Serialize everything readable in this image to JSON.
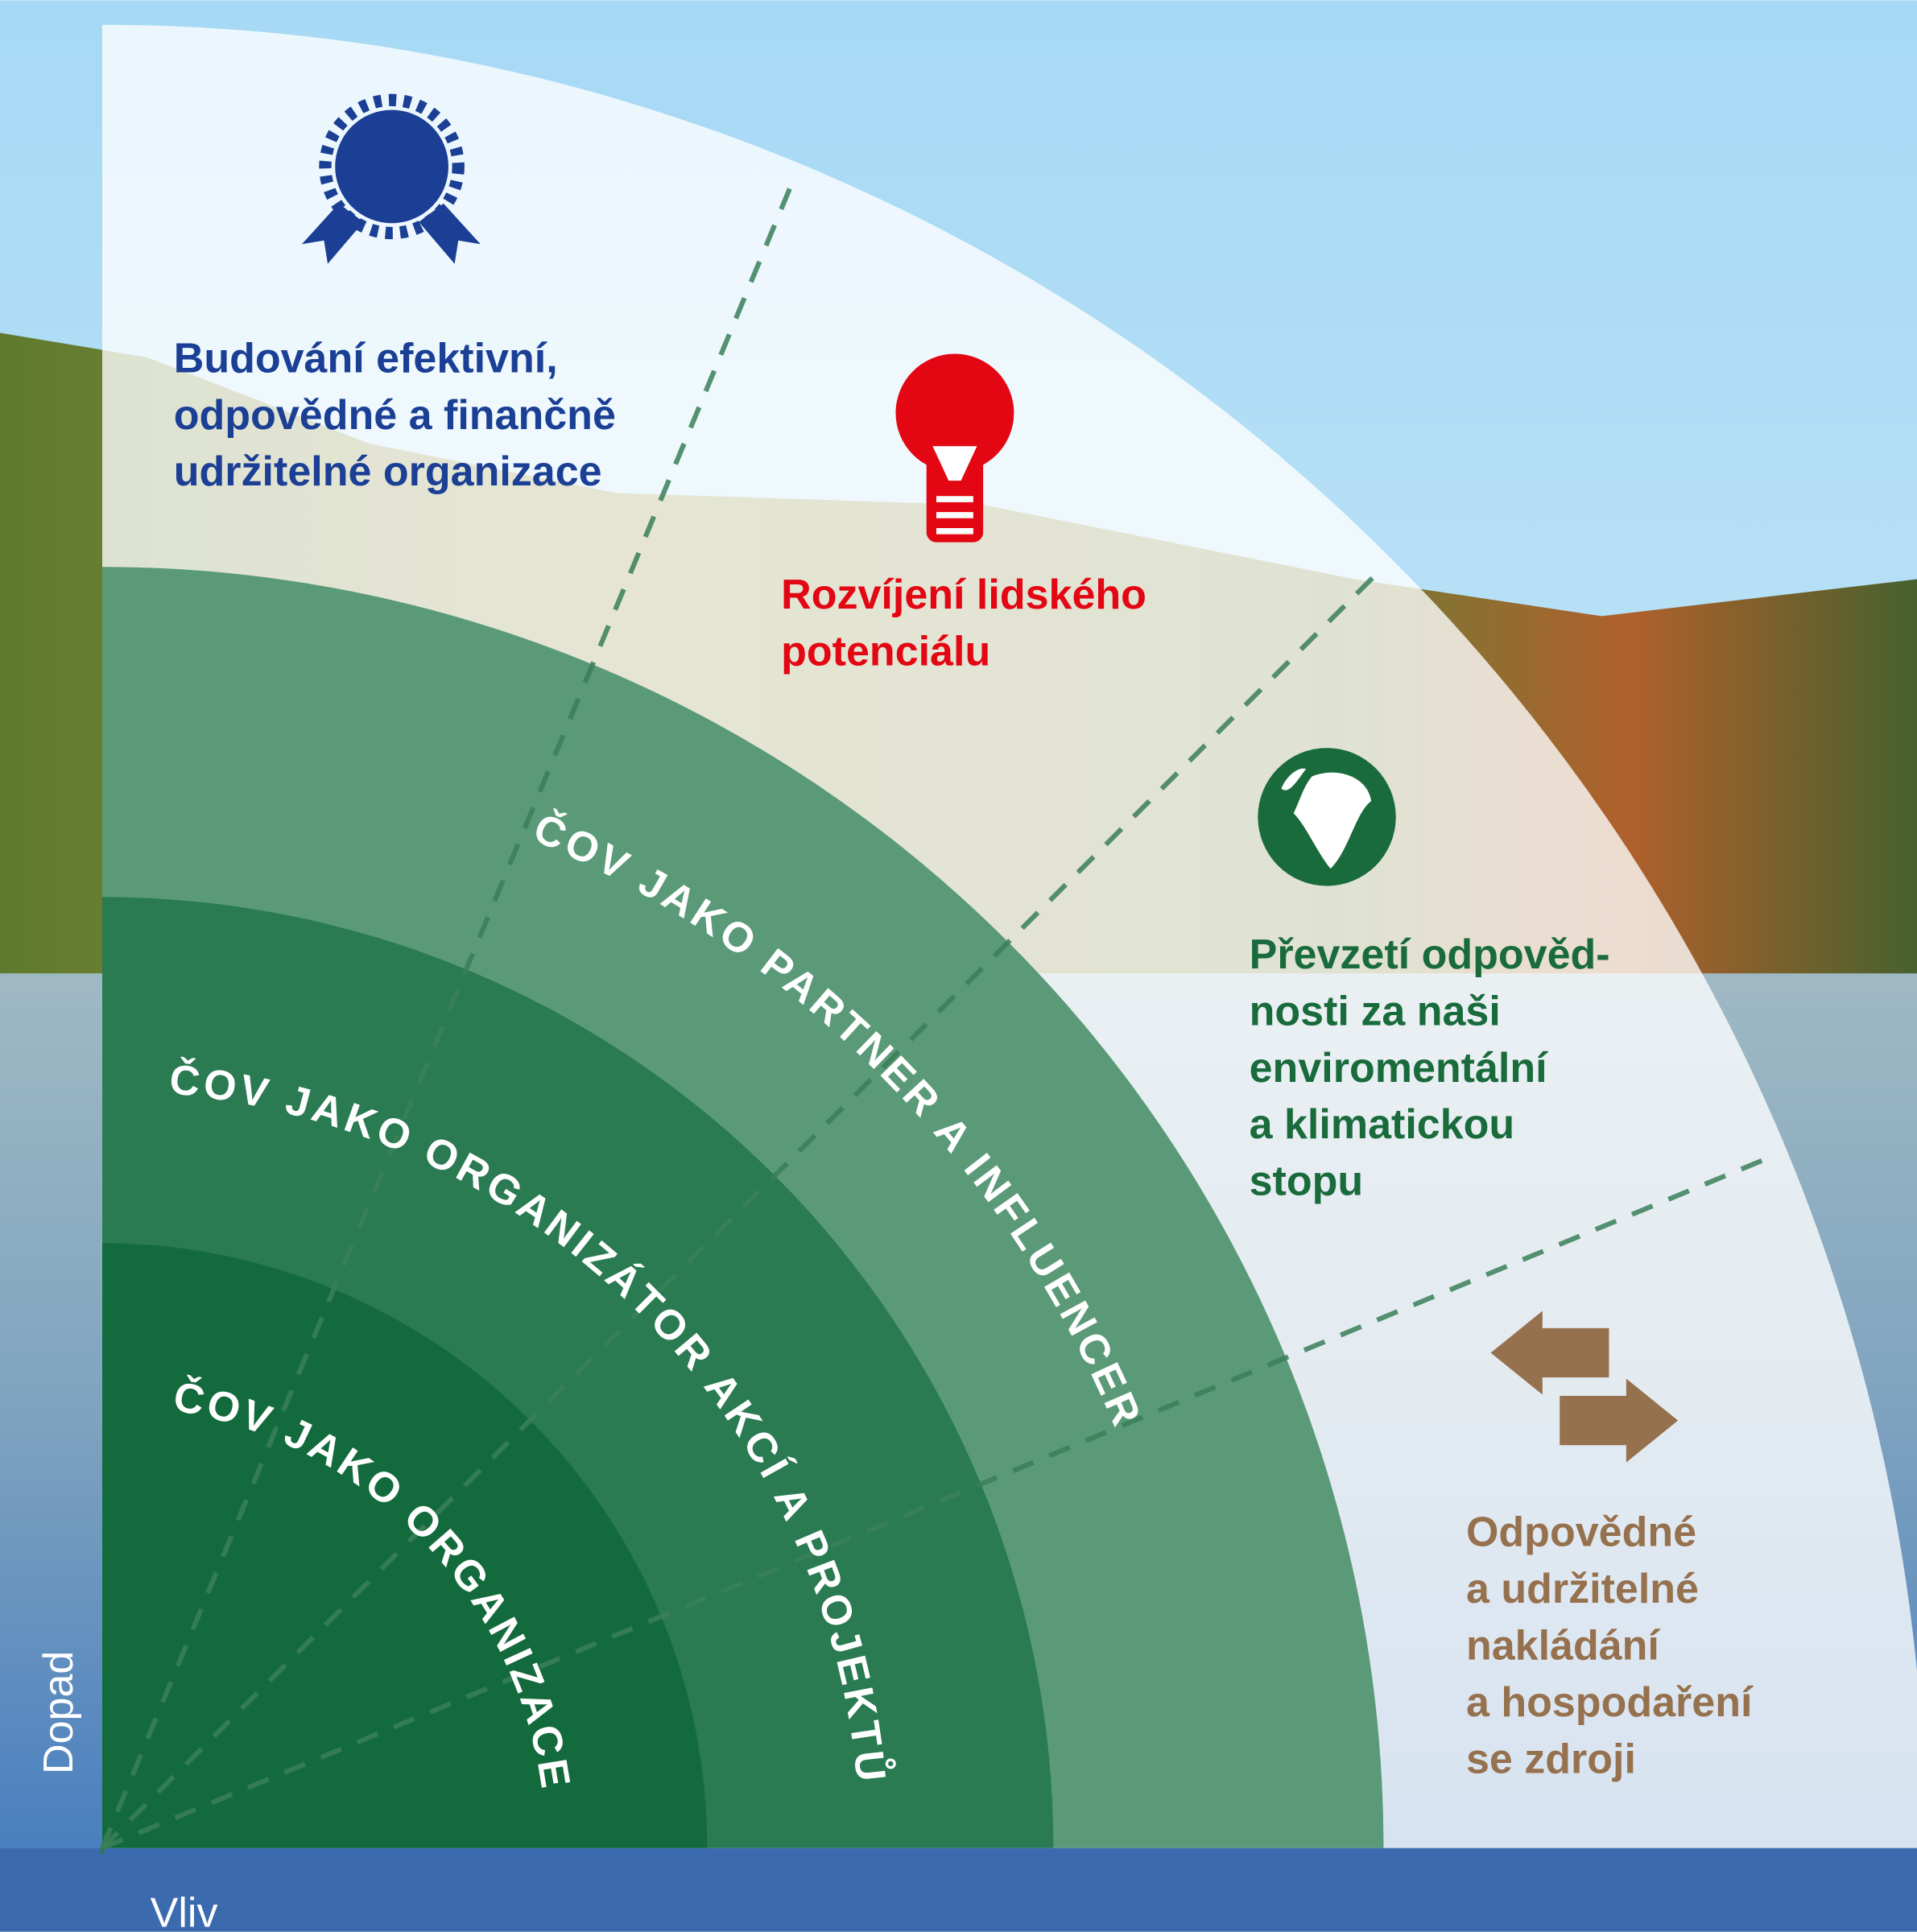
{
  "sectors": [
    {
      "lines": [
        "Budování efektivní,",
        "odpovědné a finančně",
        "udržitelné organizace"
      ]
    },
    {
      "lines": [
        "Rozvíjení lidského",
        "potenciálu"
      ]
    },
    {
      "lines": [
        "Převzetí odpověd-",
        "nosti za naši",
        "enviromentální",
        "a klimatickou",
        "stopu"
      ]
    },
    {
      "lines": [
        "Odpovědné",
        "a udržitelné",
        "nakládání",
        "a hospodaření",
        "se zdroji"
      ]
    }
  ],
  "rings": [
    "ČOV JAKO PARTNER A INFLUENCER",
    "ČOV JAKO ORGANIZÁTOR AKCÍ A PROJEKTŮ",
    "ČOV JAKO ORGANIZACE"
  ],
  "axes": {
    "y": "Dopad",
    "x": "Vliv"
  }
}
